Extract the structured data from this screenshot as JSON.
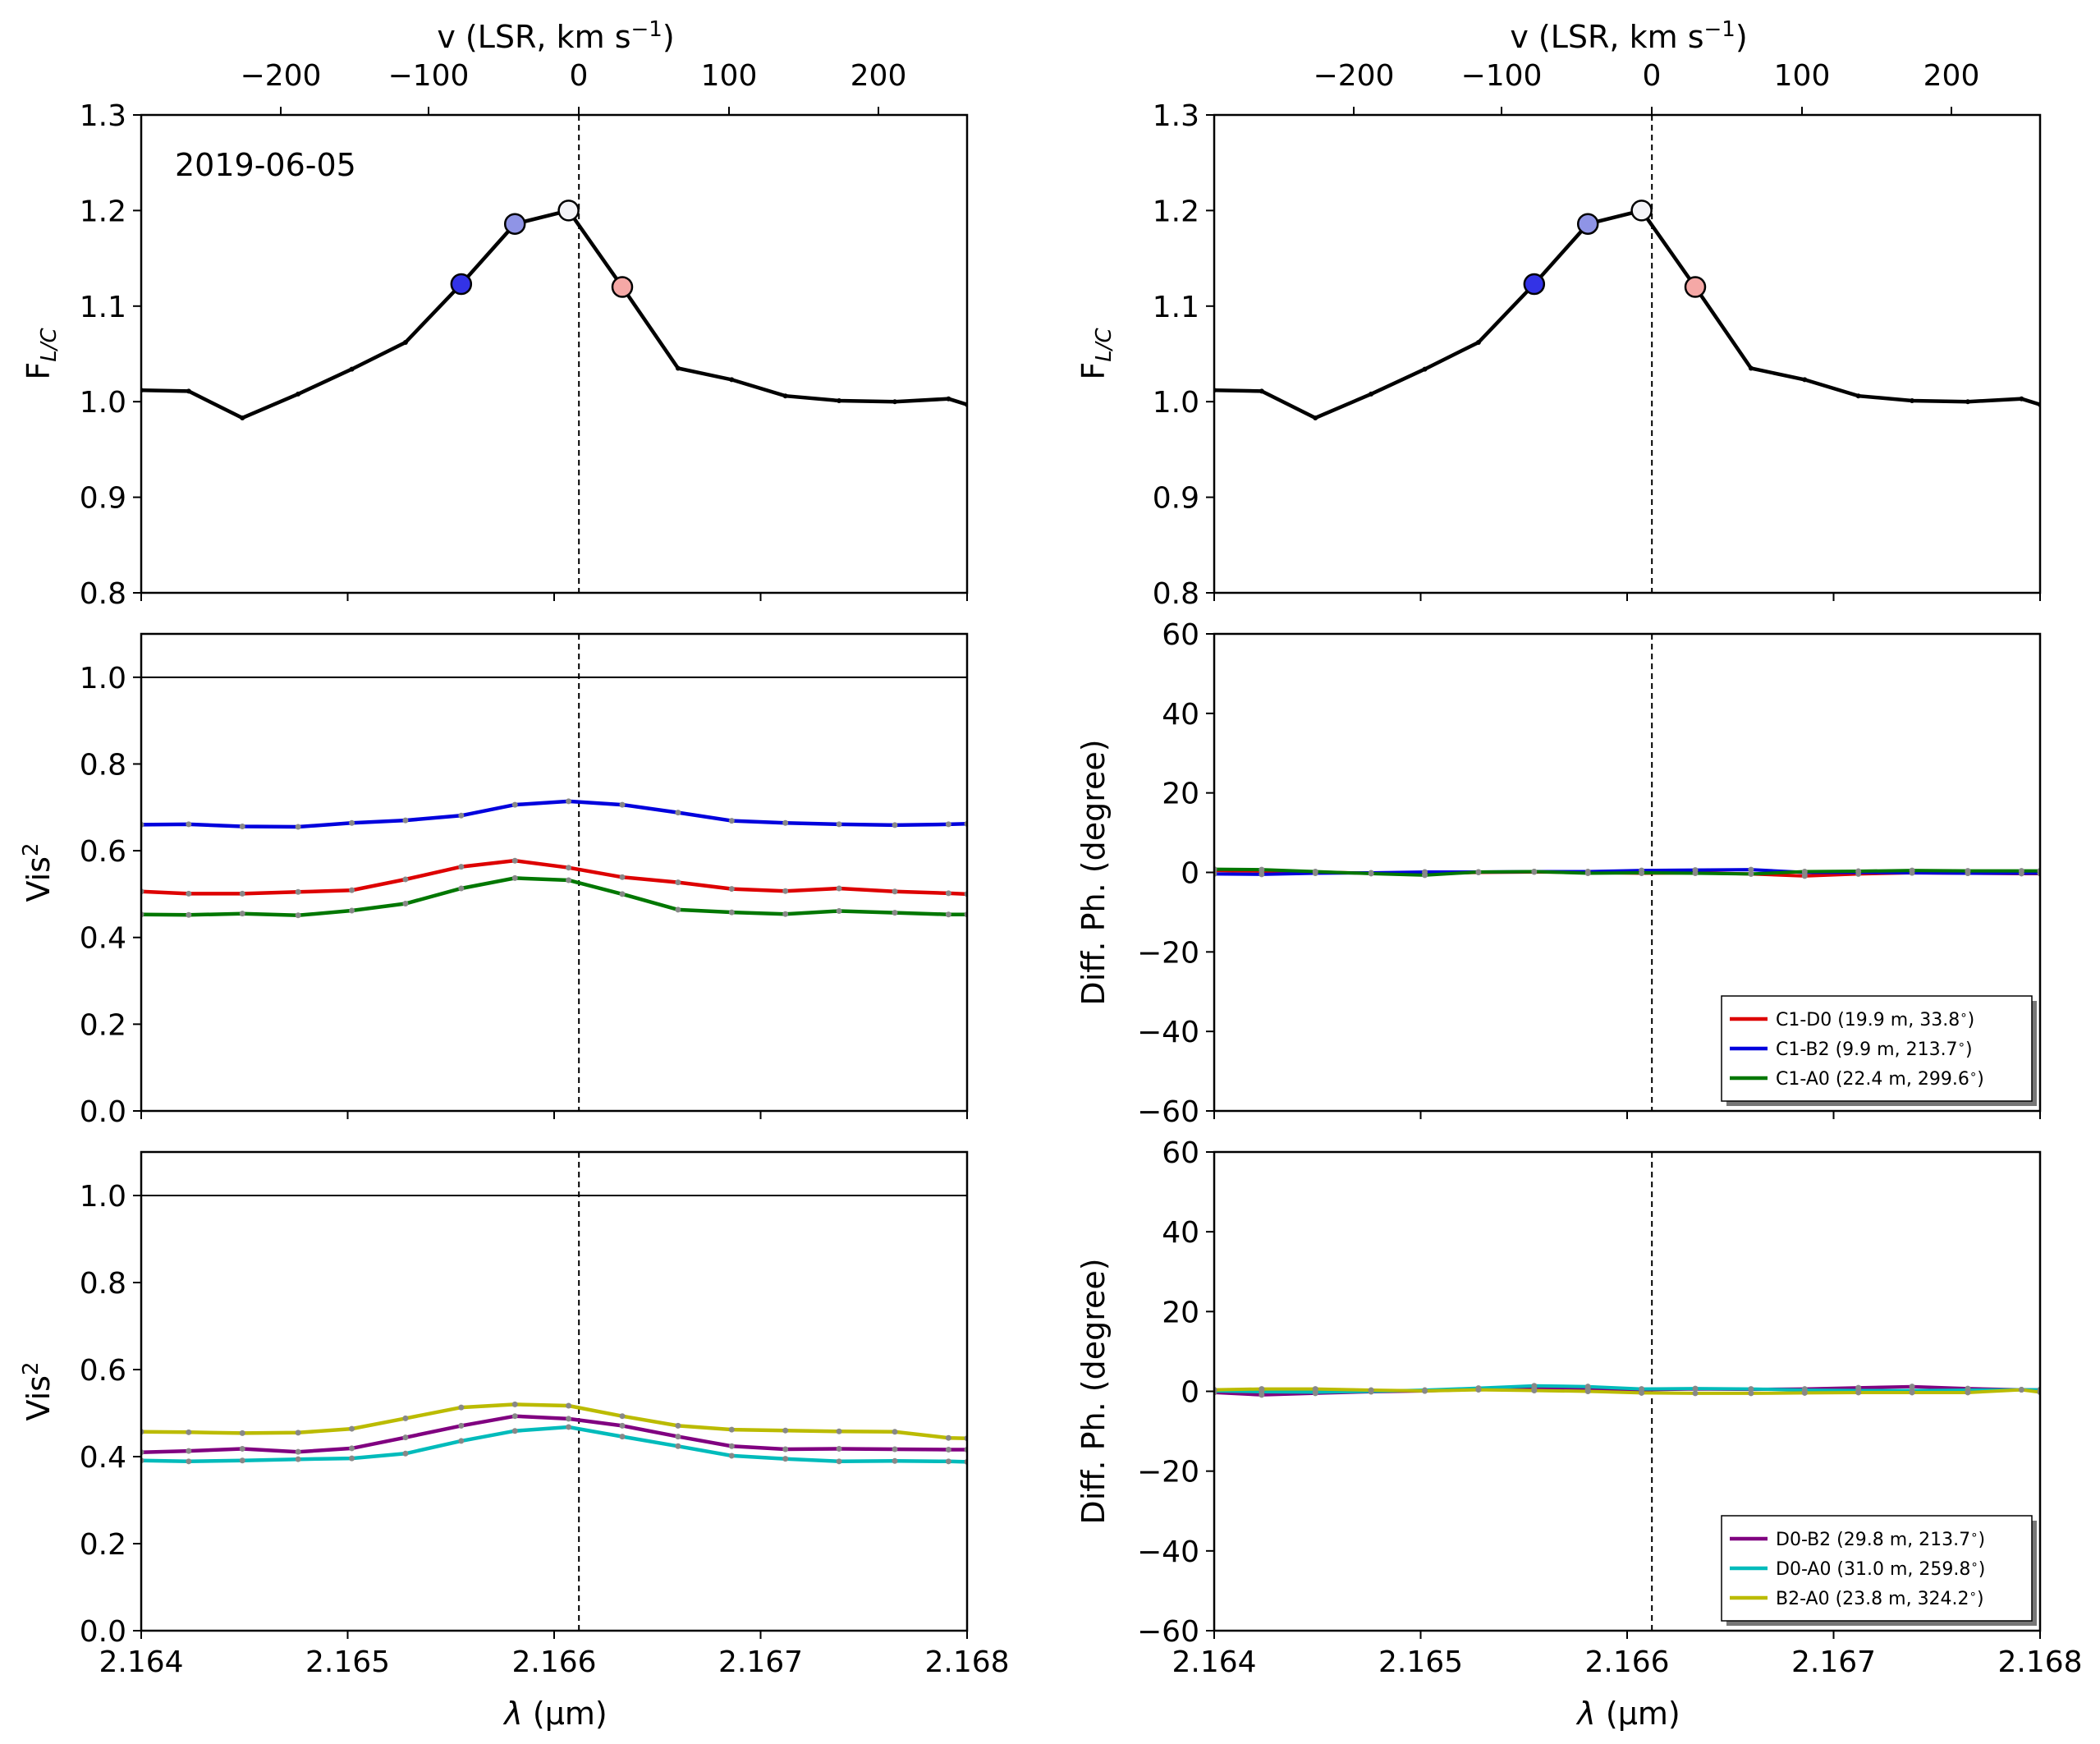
{
  "figure": {
    "date_label": "2019-06-05",
    "xlabel_base": "λ",
    "xlabel_unit": "(μm)",
    "top_axis_label": "v (LSR, km s",
    "top_axis_label_sup": "−1",
    "top_axis_label_end": ")",
    "top_axis_ticks": [
      "−200",
      "−100",
      "0",
      "100",
      "200"
    ],
    "vertical_marker_wavelength": 2.16612
  },
  "chart_data": [
    {
      "id": "flux-left",
      "type": "line",
      "ylabel": "F",
      "ylabel_sub": "L/C",
      "ylim": [
        0.8,
        1.3
      ],
      "yticks": [
        0.8,
        0.9,
        1.0,
        1.1,
        1.2,
        1.3
      ],
      "xlim": [
        2.164,
        2.168
      ],
      "x": [
        2.164,
        2.16423,
        2.16449,
        2.16476,
        2.16502,
        2.16528,
        2.16555,
        2.16581,
        2.16607,
        2.16633,
        2.1666,
        2.16686,
        2.16712,
        2.16738,
        2.16765,
        2.16791,
        2.168
      ],
      "series": [
        {
          "color": "#000000",
          "values": [
            1.012,
            1.011,
            0.983,
            1.008,
            1.034,
            1.062,
            1.123,
            1.186,
            1.2,
            1.12,
            1.035,
            1.023,
            1.006,
            1.001,
            1.0,
            1.003,
            0.997
          ]
        }
      ],
      "highlight_points": [
        {
          "x": 2.16555,
          "y": 1.123,
          "color": "#3333e6"
        },
        {
          "x": 2.16581,
          "y": 1.186,
          "color": "#8f94e6"
        },
        {
          "x": 2.16607,
          "y": 1.2,
          "color": "#f4f4f8"
        },
        {
          "x": 2.16633,
          "y": 1.12,
          "color": "#f5a8a6"
        }
      ]
    },
    {
      "id": "flux-right",
      "type": "line",
      "ylabel": "F",
      "ylabel_sub": "L/C",
      "ylim": [
        0.8,
        1.3
      ],
      "yticks": [
        0.8,
        0.9,
        1.0,
        1.1,
        1.2,
        1.3
      ],
      "xlim": [
        2.164,
        2.168
      ],
      "x": [
        2.164,
        2.16423,
        2.16449,
        2.16476,
        2.16502,
        2.16528,
        2.16555,
        2.16581,
        2.16607,
        2.16633,
        2.1666,
        2.16686,
        2.16712,
        2.16738,
        2.16765,
        2.16791,
        2.168
      ],
      "series": [
        {
          "color": "#000000",
          "values": [
            1.012,
            1.011,
            0.983,
            1.008,
            1.034,
            1.062,
            1.123,
            1.186,
            1.2,
            1.12,
            1.035,
            1.023,
            1.006,
            1.001,
            1.0,
            1.003,
            0.997
          ]
        }
      ],
      "highlight_points": [
        {
          "x": 2.16555,
          "y": 1.123,
          "color": "#3333e6"
        },
        {
          "x": 2.16581,
          "y": 1.186,
          "color": "#8f94e6"
        },
        {
          "x": 2.16607,
          "y": 1.2,
          "color": "#f4f4f8"
        },
        {
          "x": 2.16633,
          "y": 1.12,
          "color": "#f5a8a6"
        }
      ]
    },
    {
      "id": "vis2-top",
      "type": "line",
      "ylabel": "Vis",
      "ylabel_sup": "2",
      "ylim": [
        0.0,
        1.1
      ],
      "yticks": [
        0.0,
        0.2,
        0.4,
        0.6,
        0.8,
        1.0
      ],
      "reference_line": 1.0,
      "xlim": [
        2.164,
        2.168
      ],
      "x": [
        2.164,
        2.16423,
        2.16449,
        2.16476,
        2.16502,
        2.16528,
        2.16555,
        2.16581,
        2.16607,
        2.16633,
        2.1666,
        2.16686,
        2.16712,
        2.16738,
        2.16765,
        2.16791,
        2.168
      ],
      "series": [
        {
          "color": "#0000dd",
          "values": [
            0.66,
            0.661,
            0.656,
            0.655,
            0.664,
            0.67,
            0.681,
            0.706,
            0.714,
            0.706,
            0.688,
            0.669,
            0.664,
            0.661,
            0.659,
            0.661,
            0.662
          ]
        },
        {
          "color": "#dd0000",
          "values": [
            0.506,
            0.501,
            0.501,
            0.505,
            0.509,
            0.534,
            0.563,
            0.577,
            0.561,
            0.539,
            0.527,
            0.512,
            0.507,
            0.513,
            0.506,
            0.502,
            0.5
          ]
        },
        {
          "color": "#007700",
          "values": [
            0.453,
            0.452,
            0.455,
            0.451,
            0.462,
            0.478,
            0.513,
            0.537,
            0.532,
            0.5,
            0.464,
            0.458,
            0.454,
            0.461,
            0.457,
            0.453,
            0.453
          ]
        }
      ]
    },
    {
      "id": "diffph-top",
      "type": "line",
      "ylabel": "Diff. Ph. (degree)",
      "ylim": [
        -60,
        60
      ],
      "yticks": [
        -60,
        -40,
        -20,
        0,
        20,
        40,
        60
      ],
      "xlim": [
        2.164,
        2.168
      ],
      "x": [
        2.164,
        2.16423,
        2.16449,
        2.16476,
        2.16502,
        2.16528,
        2.16555,
        2.16581,
        2.16607,
        2.16633,
        2.1666,
        2.16686,
        2.16712,
        2.16738,
        2.16765,
        2.16791,
        2.168
      ],
      "series": [
        {
          "name": "C1-D0 (19.9 m, 33.8$^\\circ$)",
          "label_text": "C1-D0 (19.9 m, 33.8",
          "color": "#dd0000",
          "values": [
            0.5,
            0.3,
            0.1,
            -0.2,
            -0.3,
            0.0,
            0.1,
            0.0,
            -0.2,
            -0.1,
            -0.4,
            -0.9,
            -0.4,
            -0.1,
            -0.2,
            -0.3,
            -0.3
          ]
        },
        {
          "name": "C1-B2 (9.9 m, 213.7$^\\circ$)",
          "label_text": "C1-B2 (9.9 m, 213.7",
          "color": "#0000dd",
          "values": [
            -0.4,
            -0.5,
            -0.2,
            -0.1,
            0.1,
            0.1,
            0.2,
            0.2,
            0.5,
            0.6,
            0.7,
            0.0,
            0.0,
            -0.1,
            -0.2,
            -0.2,
            -0.2
          ]
        },
        {
          "name": "C1-A0 (22.4 m, 299.6$^\\circ$)",
          "label_text": "C1-A0 (22.4 m, 299.6",
          "color": "#007700",
          "values": [
            0.8,
            0.7,
            0.2,
            -0.3,
            -0.7,
            0.1,
            0.2,
            -0.2,
            -0.1,
            -0.2,
            -0.4,
            0.2,
            0.3,
            0.5,
            0.4,
            0.4,
            0.4
          ]
        }
      ],
      "legend_position": "lower right"
    },
    {
      "id": "vis2-bottom",
      "type": "line",
      "ylabel": "Vis",
      "ylabel_sup": "2",
      "ylim": [
        0.0,
        1.1
      ],
      "yticks": [
        0.0,
        0.2,
        0.4,
        0.6,
        0.8,
        1.0
      ],
      "reference_line": 1.0,
      "xlim": [
        2.164,
        2.168
      ],
      "x": [
        2.164,
        2.16423,
        2.16449,
        2.16476,
        2.16502,
        2.16528,
        2.16555,
        2.16581,
        2.16607,
        2.16633,
        2.1666,
        2.16686,
        2.16712,
        2.16738,
        2.16765,
        2.16791,
        2.168
      ],
      "series": [
        {
          "color": "#bbbb00",
          "values": [
            0.457,
            0.456,
            0.454,
            0.455,
            0.464,
            0.488,
            0.513,
            0.52,
            0.517,
            0.493,
            0.471,
            0.462,
            0.46,
            0.458,
            0.457,
            0.443,
            0.442
          ]
        },
        {
          "color": "#800080",
          "values": [
            0.41,
            0.413,
            0.418,
            0.411,
            0.419,
            0.444,
            0.471,
            0.493,
            0.487,
            0.471,
            0.446,
            0.424,
            0.417,
            0.418,
            0.417,
            0.416,
            0.416
          ]
        },
        {
          "color": "#00bbbb",
          "values": [
            0.391,
            0.389,
            0.391,
            0.394,
            0.396,
            0.407,
            0.436,
            0.459,
            0.468,
            0.446,
            0.424,
            0.402,
            0.395,
            0.389,
            0.39,
            0.389,
            0.388
          ]
        }
      ]
    },
    {
      "id": "diffph-bottom",
      "type": "line",
      "ylabel": "Diff. Ph. (degree)",
      "ylim": [
        -60,
        60
      ],
      "yticks": [
        -60,
        -40,
        -20,
        0,
        20,
        40,
        60
      ],
      "xlim": [
        2.164,
        2.168
      ],
      "x": [
        2.164,
        2.16423,
        2.16449,
        2.16476,
        2.16502,
        2.16528,
        2.16555,
        2.16581,
        2.16607,
        2.16633,
        2.1666,
        2.16686,
        2.16712,
        2.16738,
        2.16765,
        2.16791,
        2.168
      ],
      "series": [
        {
          "name": "D0-B2 (29.8 m, 213.7$^\\circ$)",
          "label_text": "D0-B2 (29.8 m, 213.7",
          "color": "#800080",
          "values": [
            -0.3,
            -0.9,
            -0.5,
            -0.1,
            0.1,
            0.5,
            0.9,
            0.6,
            0.4,
            0.6,
            0.5,
            0.6,
            0.9,
            1.2,
            0.7,
            0.4,
            0.4
          ]
        },
        {
          "name": "D0-A0 (31.0 m, 259.8$^\\circ$)",
          "label_text": "D0-A0 (31.0 m, 259.8",
          "color": "#00bbbb",
          "values": [
            0.1,
            -0.1,
            -0.2,
            0.0,
            0.3,
            0.8,
            1.4,
            1.2,
            0.6,
            0.7,
            0.6,
            0.3,
            0.2,
            0.2,
            0.3,
            0.4,
            0.4
          ]
        },
        {
          "name": "B2-A0 (23.8 m, 324.2$^\\circ$)",
          "label_text": "B2-A0 (23.8 m, 324.2",
          "color": "#bbbb00",
          "values": [
            0.4,
            0.6,
            0.6,
            0.3,
            0.1,
            0.4,
            0.2,
            0.0,
            -0.4,
            -0.5,
            -0.5,
            -0.4,
            -0.3,
            -0.3,
            -0.3,
            0.4,
            -0.2
          ]
        }
      ],
      "legend_position": "lower right"
    }
  ]
}
